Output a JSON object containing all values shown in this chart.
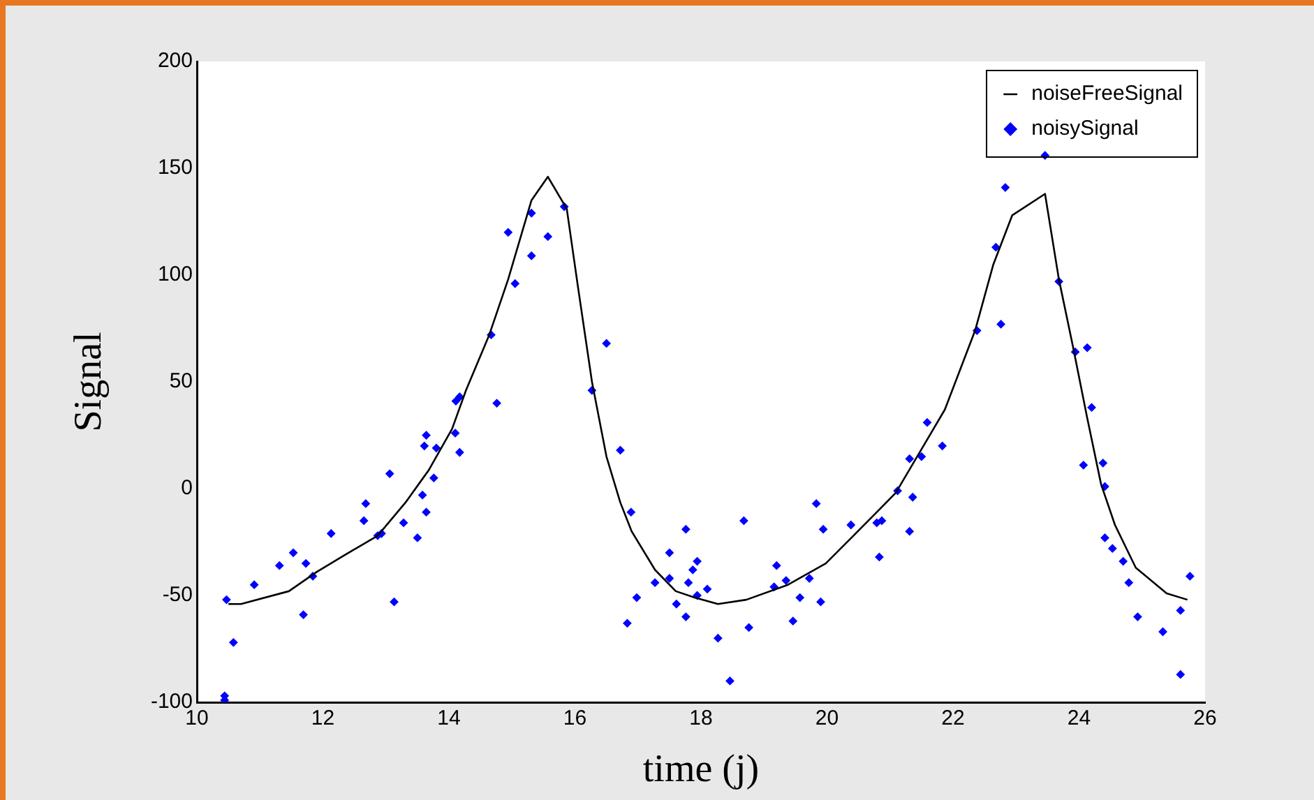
{
  "chart_data": {
    "type": "scatter",
    "xlabel": "time (j)",
    "ylabel": "Signal",
    "xlim": [
      10,
      26
    ],
    "xticks": [
      10,
      12,
      14,
      16,
      18,
      20,
      22,
      24,
      26
    ],
    "ylim": [
      -100,
      200
    ],
    "yticks": [
      -100,
      -50,
      0,
      50,
      100,
      150,
      200
    ],
    "grid": false,
    "legend": "top right",
    "series": [
      {
        "name": "noiseFreeSignal",
        "type": "line",
        "color": "#000000",
        "marker": "none",
        "line_style": "solid",
        "x": [
          10.5,
          10.7,
          11.46,
          11.9,
          12.35,
          12.87,
          13.31,
          13.68,
          14.05,
          14.27,
          14.64,
          14.94,
          15.31,
          15.57,
          15.87,
          16.05,
          16.27,
          16.5,
          16.72,
          16.9,
          17.27,
          17.6,
          17.9,
          18.27,
          18.72,
          19.38,
          19.98,
          20.42,
          20.79,
          21.09,
          21.53,
          21.87,
          22.35,
          22.64,
          22.94,
          23.46,
          23.68,
          23.9,
          24.13,
          24.35,
          24.57,
          24.9,
          25.39,
          25.72
        ],
        "values": [
          -54,
          -54,
          -48,
          -39,
          -31,
          -22,
          -6.5,
          8.7,
          28,
          46,
          72,
          98,
          135,
          146,
          131,
          94,
          50,
          15,
          -6.5,
          -20,
          -38,
          -48,
          -51,
          -54,
          -52,
          -45,
          -35,
          -22,
          -11,
          -2,
          20,
          37,
          74,
          105,
          128,
          138,
          98,
          67,
          33,
          2,
          -17,
          -37,
          -49,
          -52
        ]
      },
      {
        "name": "noisySignal",
        "type": "scatter",
        "color": "#0000ff",
        "marker": "diamond",
        "x": [
          10.44,
          10.44,
          10.58,
          10.47,
          10.91,
          11.31,
          11.53,
          11.73,
          11.69,
          11.84,
          12.13,
          12.68,
          12.65,
          12.87,
          12.93,
          13.06,
          13.13,
          13.28,
          13.5,
          13.58,
          13.64,
          13.76,
          13.61,
          13.64,
          13.8,
          14.1,
          14.11,
          14.17,
          14.17,
          14.67,
          14.76,
          14.94,
          15.05,
          15.31,
          15.31,
          15.57,
          15.83,
          16.5,
          16.27,
          16.72,
          16.89,
          16.98,
          16.83,
          17.27,
          17.5,
          17.5,
          17.61,
          17.76,
          17.76,
          17.8,
          17.87,
          17.94,
          17.94,
          18.1,
          18.27,
          18.46,
          18.68,
          18.76,
          19.2,
          19.16,
          19.35,
          19.46,
          19.57,
          19.72,
          19.83,
          19.94,
          19.9,
          20.38,
          20.79,
          20.87,
          20.83,
          21.12,
          21.31,
          21.36,
          21.31,
          21.5,
          21.59,
          21.83,
          22.38,
          22.76,
          22.68,
          22.83,
          23.46,
          23.68,
          23.94,
          24.13,
          24.2,
          24.07,
          24.38,
          24.41,
          24.41,
          24.53,
          24.7,
          24.79,
          24.93,
          25.33,
          25.61,
          25.61,
          25.76
        ],
        "values": [
          -97,
          -99,
          -72,
          -52,
          -45,
          -36,
          -30,
          -35,
          -59,
          -41,
          -21,
          -7,
          -15,
          -22,
          -21,
          7,
          -53,
          -16,
          -23,
          -3,
          -11,
          5,
          20,
          25,
          19,
          26,
          41,
          43,
          17,
          72,
          40,
          120,
          96,
          129,
          109,
          118,
          132,
          68,
          46,
          18,
          -11,
          -51,
          -63,
          -44,
          -30,
          -42,
          -54,
          -19,
          -60,
          -44,
          -38,
          -34,
          -50,
          -47,
          -70,
          -90,
          -15,
          -65,
          -36,
          -46,
          -43,
          -62,
          -51,
          -42,
          -7,
          -19,
          -53,
          -17,
          -16,
          -15,
          -32,
          -1,
          -20,
          -4,
          14,
          15,
          31,
          20,
          74,
          77,
          113,
          141,
          156,
          97,
          64,
          66,
          38,
          11,
          12,
          1,
          -23,
          -28,
          -34,
          -44,
          -60,
          -67,
          -87,
          -57,
          -41
        ]
      }
    ]
  }
}
